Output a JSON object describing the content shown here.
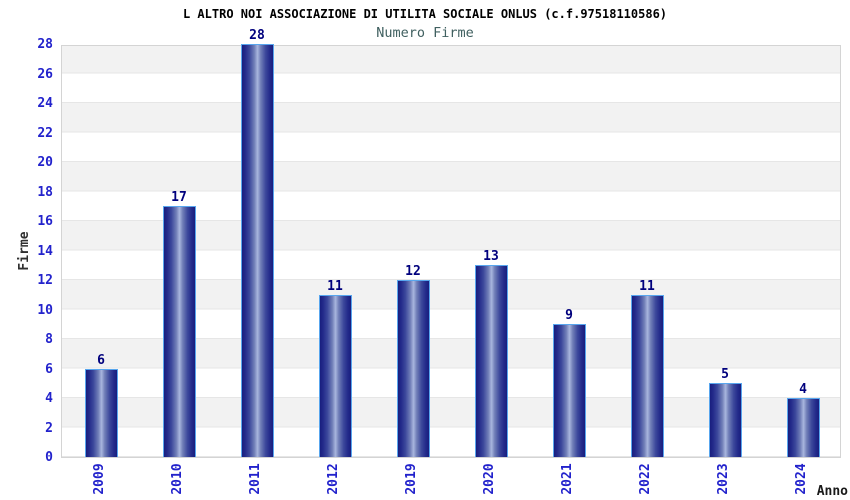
{
  "title": "L ALTRO NOI ASSOCIAZIONE DI UTILITA SOCIALE ONLUS (c.f.97518110586)",
  "subtitle": "Numero Firme",
  "chart_data": {
    "type": "bar",
    "title": "Numero Firme",
    "categories": [
      "2009",
      "2010",
      "2011",
      "2012",
      "2019",
      "2020",
      "2021",
      "2022",
      "2023",
      "2024"
    ],
    "values": [
      6,
      17,
      28,
      11,
      12,
      13,
      9,
      11,
      5,
      4
    ],
    "xlabel": "Anno",
    "ylabel": "Firme",
    "ylim": [
      0,
      28
    ],
    "ytick_step": 2,
    "yticks": [
      0,
      2,
      4,
      6,
      8,
      10,
      12,
      14,
      16,
      18,
      20,
      22,
      24,
      26,
      28
    ],
    "grid": "alternating horizontal bands every 2 units",
    "legend": "none",
    "colors": {
      "bar_edge": "#191e7e",
      "bar_center": "#a9b6de",
      "bar_border": "#58a6ee",
      "value_label": "#00007d",
      "tick_label": "#2222cc",
      "subtitle": "#406060",
      "band_gray": "#f2f2f2",
      "band_white": "#ffffff",
      "plot_border": "#d4d4d4"
    }
  }
}
